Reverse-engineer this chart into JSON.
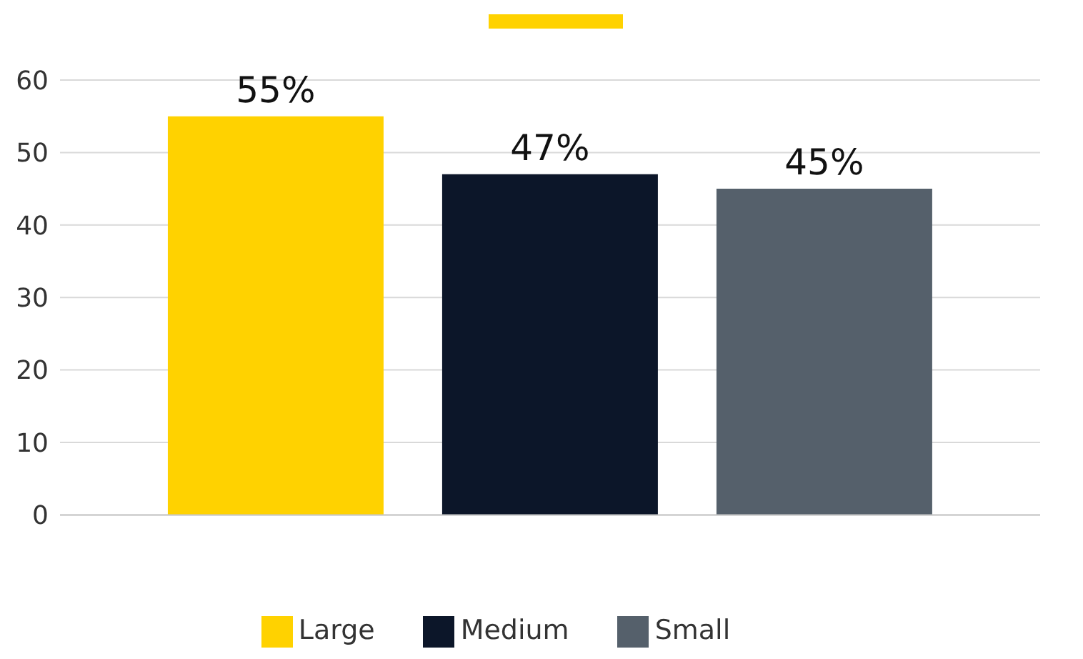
{
  "chart_data": {
    "type": "bar",
    "categories": [
      null
    ],
    "series": [
      {
        "name": "Large",
        "color": "#ffd200",
        "values": [
          55
        ],
        "value_labels": [
          "55%"
        ]
      },
      {
        "name": "Medium",
        "color": "#0c1629",
        "values": [
          47
        ],
        "value_labels": [
          "47%"
        ]
      },
      {
        "name": "Small",
        "color": "#55606b",
        "values": [
          45
        ],
        "value_labels": [
          "45%"
        ]
      }
    ],
    "ylim": [
      0,
      60
    ],
    "yticks": [
      0,
      10,
      20,
      30,
      40,
      50,
      60
    ],
    "grid": "y",
    "legend": "bottom"
  }
}
